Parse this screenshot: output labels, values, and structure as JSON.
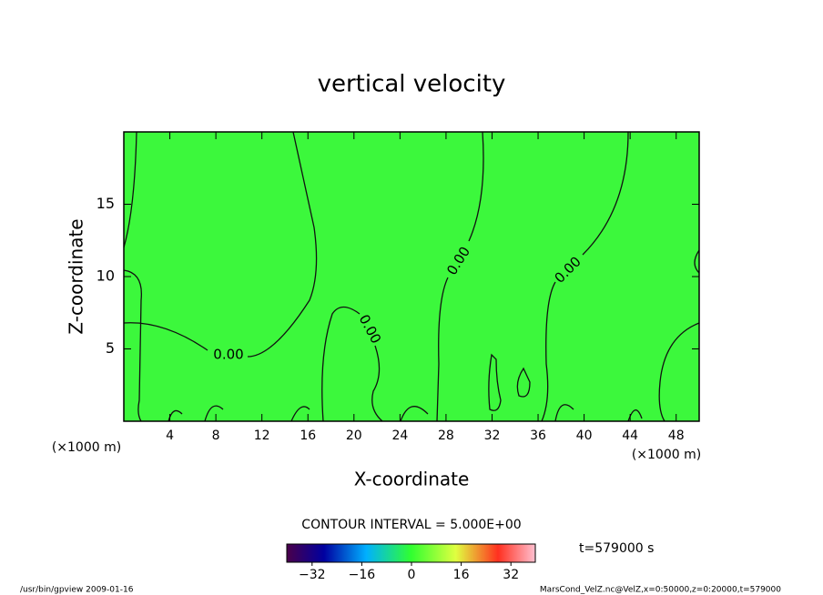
{
  "chart_data": {
    "type": "contour",
    "title": "vertical velocity",
    "xlabel": "X-coordinate",
    "ylabel": "Z-coordinate",
    "xunit": "(×1000 m)",
    "xlim": [
      0,
      50
    ],
    "xticks": [
      4,
      8,
      12,
      16,
      20,
      24,
      28,
      32,
      36,
      40,
      44,
      48
    ],
    "ylim": [
      0,
      20
    ],
    "yticks": [
      5,
      10,
      15
    ],
    "field_color": "#3cf83c",
    "contour_levels": [
      {
        "value": 0,
        "label": "0.00"
      }
    ],
    "contour_interval": "CONTOUR INTERVAL = 5.000E+00",
    "clim": [
      -40,
      40
    ],
    "cticks": [
      {
        "value": -32,
        "label": "−32"
      },
      {
        "value": -16,
        "label": "−16"
      },
      0,
      16,
      32
    ],
    "time": "t=579000 s",
    "footer_left": "/usr/bin/gpview  2009-01-16",
    "footer_right": "MarsCond_VelZ.nc@VelZ,x=0:50000,z=0:20000,t=579000"
  }
}
